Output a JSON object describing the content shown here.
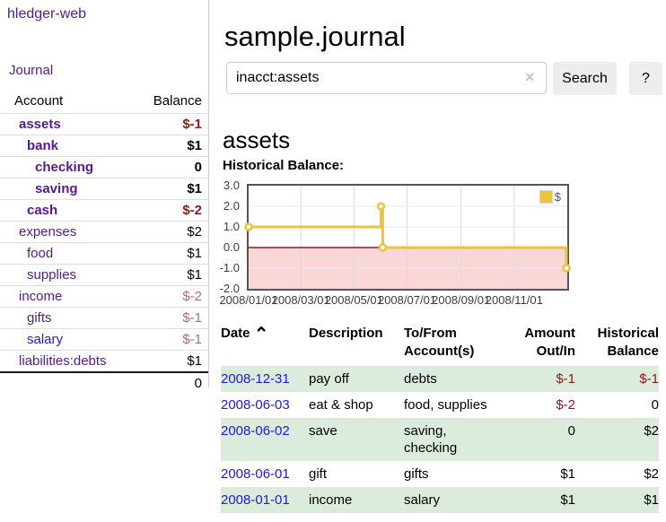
{
  "app": {
    "brand": "hledger-web"
  },
  "sidebar": {
    "journal_link": "Journal",
    "accounts": {
      "header": {
        "account": "Account",
        "balance": "Balance"
      },
      "rows": [
        {
          "account": "assets",
          "balance": "$-1"
        },
        {
          "account": "bank",
          "balance": "$1"
        },
        {
          "account": "checking",
          "balance": "0"
        },
        {
          "account": "saving",
          "balance": "$1"
        },
        {
          "account": "cash",
          "balance": "$-2"
        },
        {
          "account": "expenses",
          "balance": "$2"
        },
        {
          "account": "food",
          "balance": "$1"
        },
        {
          "account": "supplies",
          "balance": "$1"
        },
        {
          "account": "income",
          "balance": "$-2"
        },
        {
          "account": "gifts",
          "balance": "$-1"
        },
        {
          "account": "salary",
          "balance": "$-1"
        },
        {
          "account": "liabilities:debts",
          "balance": "$1"
        }
      ],
      "total": "0"
    }
  },
  "main": {
    "title": "sample.journal",
    "search": {
      "value": "inacct:assets",
      "clear_icon": "×",
      "search_button": "Search",
      "help_button": "?"
    },
    "account_title": "assets",
    "chart_label": "Historical Balance:"
  },
  "chart_data": {
    "type": "line",
    "style": "step",
    "title": "Historical Balance:",
    "x_range": [
      "2008-01-01",
      "2009-01-01"
    ],
    "ylim": [
      -2,
      3
    ],
    "y_ticks": [
      "3.0",
      "2.0",
      "1.0",
      "0.0",
      "-1.0",
      "-2.0"
    ],
    "y_values": [
      3,
      2,
      1,
      0,
      -1,
      -2
    ],
    "x_ticks": [
      {
        "label": "2008/01/01",
        "date": "2008-01-01"
      },
      {
        "label": "2008/03/01",
        "date": "2008-03-01"
      },
      {
        "label": "2008/05/01",
        "date": "2008-05-01"
      },
      {
        "label": "2008/07/01",
        "date": "2008-07-01"
      },
      {
        "label": "2008/09/01",
        "date": "2008-09-01"
      },
      {
        "label": "2008/11/01",
        "date": "2008-11-01"
      }
    ],
    "series": [
      {
        "name": "$",
        "color": "#edc240",
        "points": [
          [
            "2008-01-01",
            1
          ],
          [
            "2008-06-01",
            2
          ],
          [
            "2008-06-03",
            0
          ],
          [
            "2008-12-31",
            -1
          ]
        ]
      }
    ],
    "legend": {
      "label": "$",
      "position": "top-right"
    },
    "grid": true,
    "negative_region_color": "#f9d7d7",
    "zero_line_color": "#7c2222",
    "grid_color": "#dcdcdc",
    "border_color": "#545454"
  },
  "register": {
    "headers": {
      "date": "Date",
      "sort_icon": "⌃",
      "description": "Description",
      "accounts": "To/From Account(s)",
      "amount": "Amount Out/In",
      "balance": "Historical Balance"
    },
    "rows": [
      {
        "date": "2008-12-31",
        "description": "pay off",
        "accounts": "debts",
        "amount": "$-1",
        "balance": "$-1"
      },
      {
        "date": "2008-06-03",
        "description": "eat & shop",
        "accounts": "food, supplies",
        "amount": "$-2",
        "balance": "0"
      },
      {
        "date": "2008-06-02",
        "description": "save",
        "accounts": "saving, checking",
        "amount": "0",
        "balance": "$2"
      },
      {
        "date": "2008-06-01",
        "description": "gift",
        "accounts": "gifts",
        "amount": "$1",
        "balance": "$2"
      },
      {
        "date": "2008-01-01",
        "description": "income",
        "accounts": "salary",
        "amount": "$1",
        "balance": "$1"
      }
    ]
  }
}
